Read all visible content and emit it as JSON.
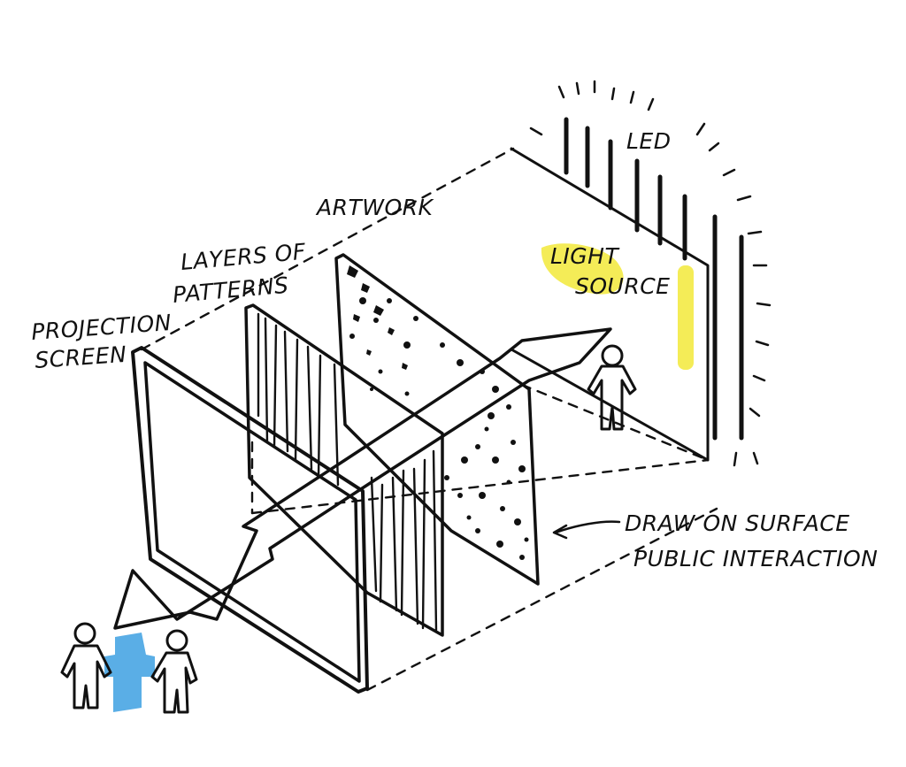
{
  "labels": {
    "led": "LED",
    "artwork": "ARTWORK",
    "layers_line1": "LAYERS OF",
    "layers_line2": "PATTERNS",
    "light_line1": "LIGHT",
    "light_line2": "SOURCE",
    "projection_line1": "PROJECTION",
    "projection_line2": "SCREEN",
    "draw_line1": "DRAW ON SURFACE",
    "draw_line2": "PUBLIC INTERACTION"
  },
  "colors": {
    "ink": "#111111",
    "highlight_yellow": "#f2e93a",
    "highlight_blue": "#5aaee6"
  },
  "icons": [
    "led-tube-icon",
    "person-icon",
    "arrow-icon"
  ]
}
